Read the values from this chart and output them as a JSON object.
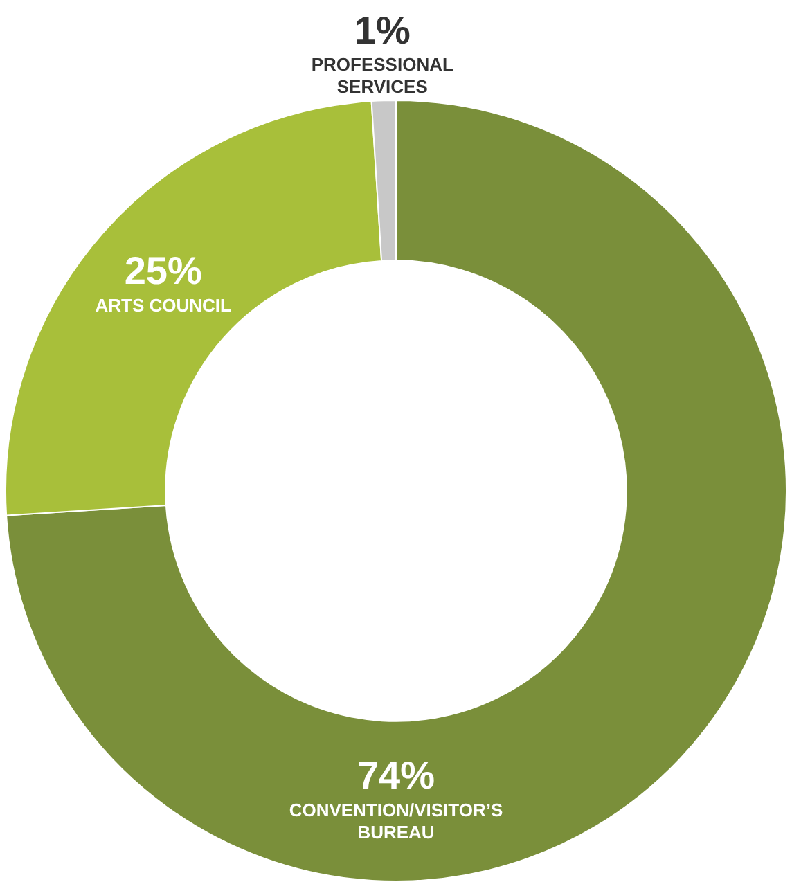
{
  "chart_data": {
    "type": "donut",
    "categories": [
      "CONVENTION/VISITOR’S BUREAU",
      "ARTS COUNCIL",
      "PROFESSIONAL SERVICES"
    ],
    "values": [
      74,
      25,
      1
    ],
    "value_labels": [
      "74%",
      "25%",
      "1%"
    ],
    "colors": [
      "#7a8f3a",
      "#a8bf3a",
      "#c8c8c8"
    ],
    "legend": false
  }
}
